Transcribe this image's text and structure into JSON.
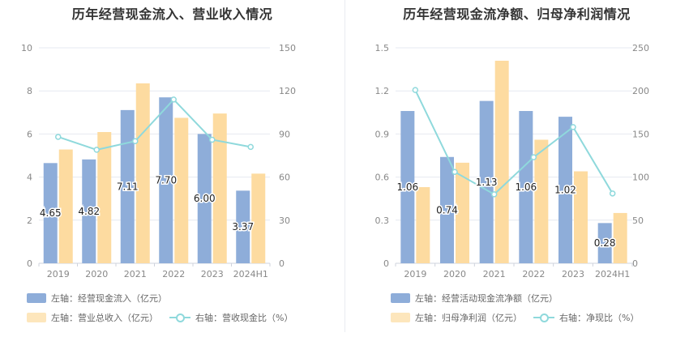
{
  "chart_data": [
    {
      "type": "bar",
      "title": "历年经营现金流入、营业收入情况",
      "categories": [
        "2019",
        "2020",
        "2021",
        "2022",
        "2023",
        "2024H1"
      ],
      "ylim": [
        0,
        10
      ],
      "y_ticks": [
        "0",
        "2",
        "4",
        "6",
        "8",
        "10"
      ],
      "y2lim": [
        0,
        150
      ],
      "y2_ticks": [
        "0",
        "30",
        "60",
        "90",
        "120",
        "150"
      ],
      "series": [
        {
          "name": "左轴：经营现金流入（亿元）",
          "type": "bar",
          "axis": "left",
          "color": "#8eadd9",
          "values": [
            4.65,
            4.82,
            7.11,
            7.7,
            6.0,
            3.37
          ],
          "labels": [
            "4.65",
            "4.82",
            "7.11",
            "7.70",
            "6.00",
            "3.37"
          ]
        },
        {
          "name": "左轴：营业总收入（亿元）",
          "type": "bar",
          "axis": "left",
          "color": "#fddba0",
          "values": [
            5.28,
            6.09,
            8.35,
            6.75,
            6.95,
            4.16
          ]
        },
        {
          "name": "右轴：营收现金比（%）",
          "type": "line",
          "axis": "right",
          "color": "#8fd9dc",
          "values": [
            88,
            79,
            85,
            114,
            86,
            81
          ]
        }
      ],
      "grid": true,
      "legend_position": "bottom"
    },
    {
      "type": "bar",
      "title": "历年经营现金流净额、归母净利润情况",
      "categories": [
        "2019",
        "2020",
        "2021",
        "2022",
        "2023",
        "2024H1"
      ],
      "ylim": [
        0,
        1.5
      ],
      "y_ticks": [
        "0",
        "0.3",
        "0.6",
        "0.9",
        "1.2",
        "1.5"
      ],
      "y2lim": [
        0,
        250
      ],
      "y2_ticks": [
        "0",
        "50",
        "100",
        "150",
        "200",
        "250"
      ],
      "series": [
        {
          "name": "左轴：经营活动现金流净额（亿元）",
          "type": "bar",
          "axis": "left",
          "color": "#8eadd9",
          "values": [
            1.06,
            0.74,
            1.13,
            1.06,
            1.02,
            0.28
          ],
          "labels": [
            "1.06",
            "0.74",
            "1.13",
            "1.06",
            "1.02",
            "0.28"
          ]
        },
        {
          "name": "左轴：归母净利润（亿元）",
          "type": "bar",
          "axis": "left",
          "color": "#fddba0",
          "values": [
            0.53,
            0.7,
            1.41,
            0.86,
            0.64,
            0.35
          ]
        },
        {
          "name": "右轴：净现比（%）",
          "type": "line",
          "axis": "right",
          "color": "#8fd9dc",
          "values": [
            201,
            106,
            80,
            123,
            158,
            81
          ]
        }
      ],
      "grid": true,
      "legend_position": "bottom"
    }
  ]
}
